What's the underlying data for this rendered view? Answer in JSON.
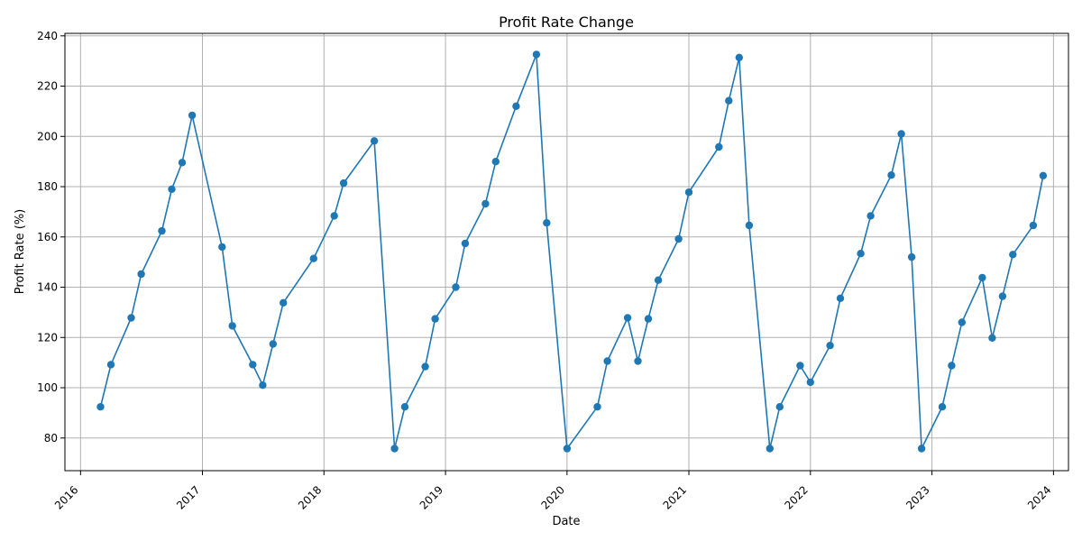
{
  "chart_data": {
    "type": "line",
    "title": "Profit Rate Change",
    "xlabel": "Date",
    "ylabel": "Profit Rate (%)",
    "xlim": [
      "2015-11-15",
      "2024-02-15"
    ],
    "ylim": [
      67,
      241
    ],
    "x_ticks": [
      "2016",
      "2017",
      "2018",
      "2019",
      "2020",
      "2021",
      "2022",
      "2023",
      "2024"
    ],
    "y_ticks": [
      80,
      100,
      120,
      140,
      160,
      180,
      200,
      220,
      240
    ],
    "grid": true,
    "line_color": "#1f77b4",
    "marker": "circle",
    "series": [
      {
        "x": [
          "2016-03-01",
          "2016-04-01",
          "2016-06-01",
          "2016-07-01",
          "2016-09-01",
          "2016-10-01",
          "2016-11-01",
          "2016-12-01",
          "2017-03-01",
          "2017-04-01",
          "2017-06-01",
          "2017-07-01",
          "2017-08-01",
          "2017-09-01",
          "2017-12-01",
          "2018-02-01",
          "2018-03-01",
          "2018-06-01",
          "2018-08-01",
          "2018-09-01",
          "2018-11-01",
          "2018-12-01",
          "2019-02-01",
          "2019-03-01",
          "2019-05-01",
          "2019-06-01",
          "2019-08-01",
          "2019-10-01",
          "2019-11-01",
          "2020-01-01",
          "2020-04-01",
          "2020-05-01",
          "2020-07-01",
          "2020-08-01",
          "2020-09-01",
          "2020-10-01",
          "2020-12-01",
          "2021-01-01",
          "2021-04-01",
          "2021-05-01",
          "2021-06-01",
          "2021-07-01",
          "2021-09-01",
          "2021-10-01",
          "2021-12-01",
          "2022-01-01",
          "2022-03-01",
          "2022-04-01",
          "2022-06-01",
          "2022-07-01",
          "2022-09-01",
          "2022-10-01",
          "2022-11-01",
          "2022-12-01",
          "2023-02-01",
          "2023-03-01",
          "2023-04-01",
          "2023-06-01",
          "2023-07-01",
          "2023-08-01",
          "2023-09-01",
          "2023-11-01",
          "2023-12-01"
        ],
        "values": [
          92.4,
          109.2,
          127.8,
          145.2,
          162.4,
          179.0,
          189.6,
          208.4,
          156.0,
          124.6,
          109.2,
          101.0,
          117.4,
          133.8,
          151.4,
          168.4,
          181.4,
          198.2,
          75.8,
          92.4,
          108.4,
          127.4,
          140.0,
          157.4,
          173.2,
          190.0,
          212.0,
          232.6,
          165.6,
          75.8,
          92.4,
          110.6,
          127.8,
          110.6,
          127.4,
          142.8,
          159.2,
          177.8,
          195.8,
          214.2,
          231.4,
          164.6,
          75.8,
          92.4,
          108.8,
          102.2,
          116.8,
          135.6,
          153.4,
          168.4,
          184.6,
          201.0,
          152.0,
          75.8,
          92.4,
          108.8,
          126.0,
          143.8,
          119.8,
          136.4,
          153.0,
          164.6,
          184.4
        ]
      }
    ]
  }
}
